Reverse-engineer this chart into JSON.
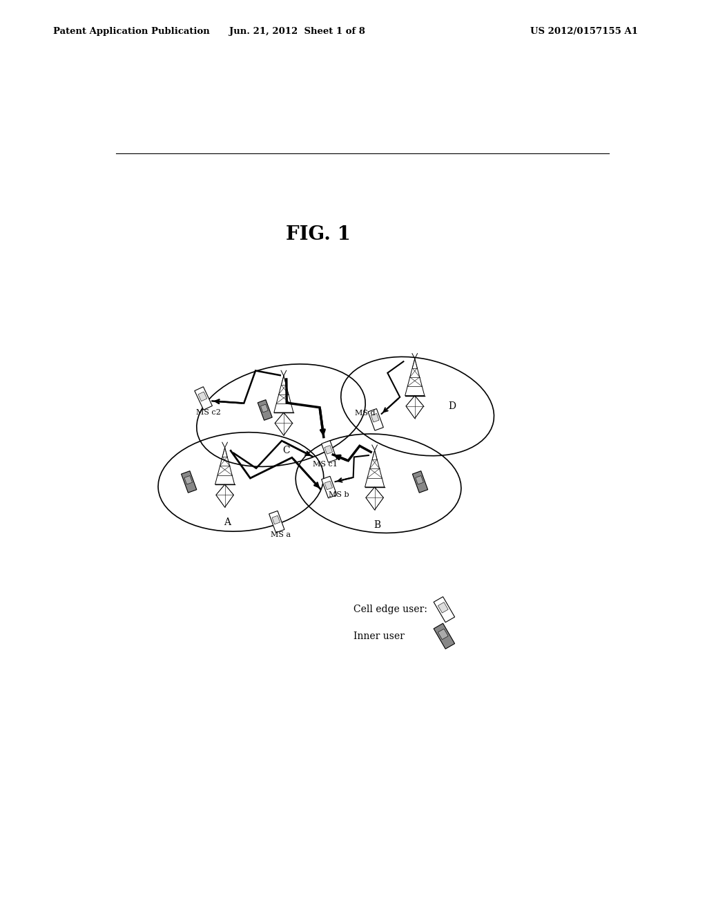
{
  "background_color": "#ffffff",
  "header_left": "Patent Application Publication",
  "header_center": "Jun. 21, 2012  Sheet 1 of 8",
  "header_right": "US 2012/0157155 A1",
  "fig_label": "FIG. 1",
  "legend_cell_edge_label": "Cell edge user:",
  "legend_inner_label": "Inner user"
}
